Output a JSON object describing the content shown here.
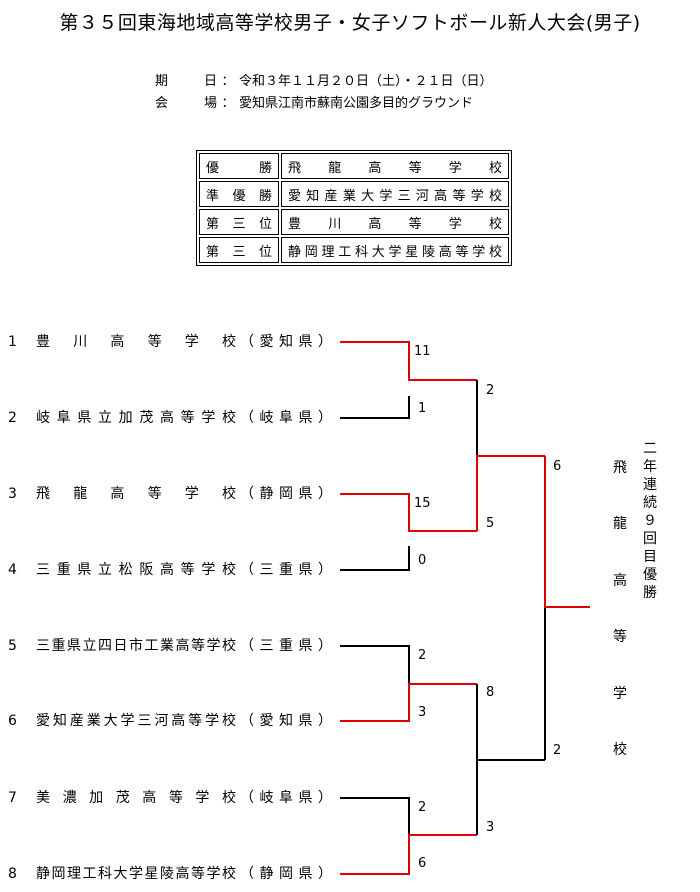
{
  "title": "第３５回東海地域高等学校男子・女子ソフトボール新人大会(男子)",
  "info": {
    "date_label": "期日",
    "date_value": "令和３年１１月２０日（土）・２１日（日）",
    "venue_label": "会場",
    "venue_value": "愛知県江南市蘇南公園多目的グラウンド"
  },
  "results": [
    {
      "rank": "優勝",
      "school": "飛龍高等学校"
    },
    {
      "rank": "準優勝",
      "school": "愛知産業大学三河高等学校"
    },
    {
      "rank": "第三位",
      "school": "豊川高等学校"
    },
    {
      "rank": "第三位",
      "school": "静岡理工科大学星陵高等学校"
    }
  ],
  "teams": [
    {
      "num": "1",
      "name": "豊川高等学校",
      "pref": "（愛知県）"
    },
    {
      "num": "2",
      "name": "岐阜県立加茂高等学校",
      "pref": "（岐阜県）"
    },
    {
      "num": "3",
      "name": "飛龍高等学校",
      "pref": "（静岡県）"
    },
    {
      "num": "4",
      "name": "三重県立松阪高等学校",
      "pref": "（三重県）"
    },
    {
      "num": "5",
      "name": "三重県立四日市工業高等学校",
      "pref": "（三重県）"
    },
    {
      "num": "6",
      "name": "愛知産業大学三河高等学校",
      "pref": "（愛知県）"
    },
    {
      "num": "7",
      "name": "美濃加茂高等学校",
      "pref": "（岐阜県）"
    },
    {
      "num": "8",
      "name": "静岡理工科大学星陵高等学校",
      "pref": "（静岡県）"
    }
  ],
  "scores": {
    "r1": [
      "11",
      "1",
      "15",
      "0",
      "2",
      "3",
      "2",
      "6"
    ],
    "r2": [
      "2",
      "5",
      "8",
      "3"
    ],
    "r3": [
      "6",
      "2"
    ]
  },
  "champion": {
    "name_chars": [
      "飛",
      "龍",
      "高",
      "等",
      "学",
      "校"
    ],
    "note_chars": [
      "二",
      "年",
      "連",
      "続",
      "９",
      "回",
      "目",
      "優",
      "勝"
    ]
  },
  "colors": {
    "winner_line": "#e00000",
    "loser_line": "#000000"
  }
}
